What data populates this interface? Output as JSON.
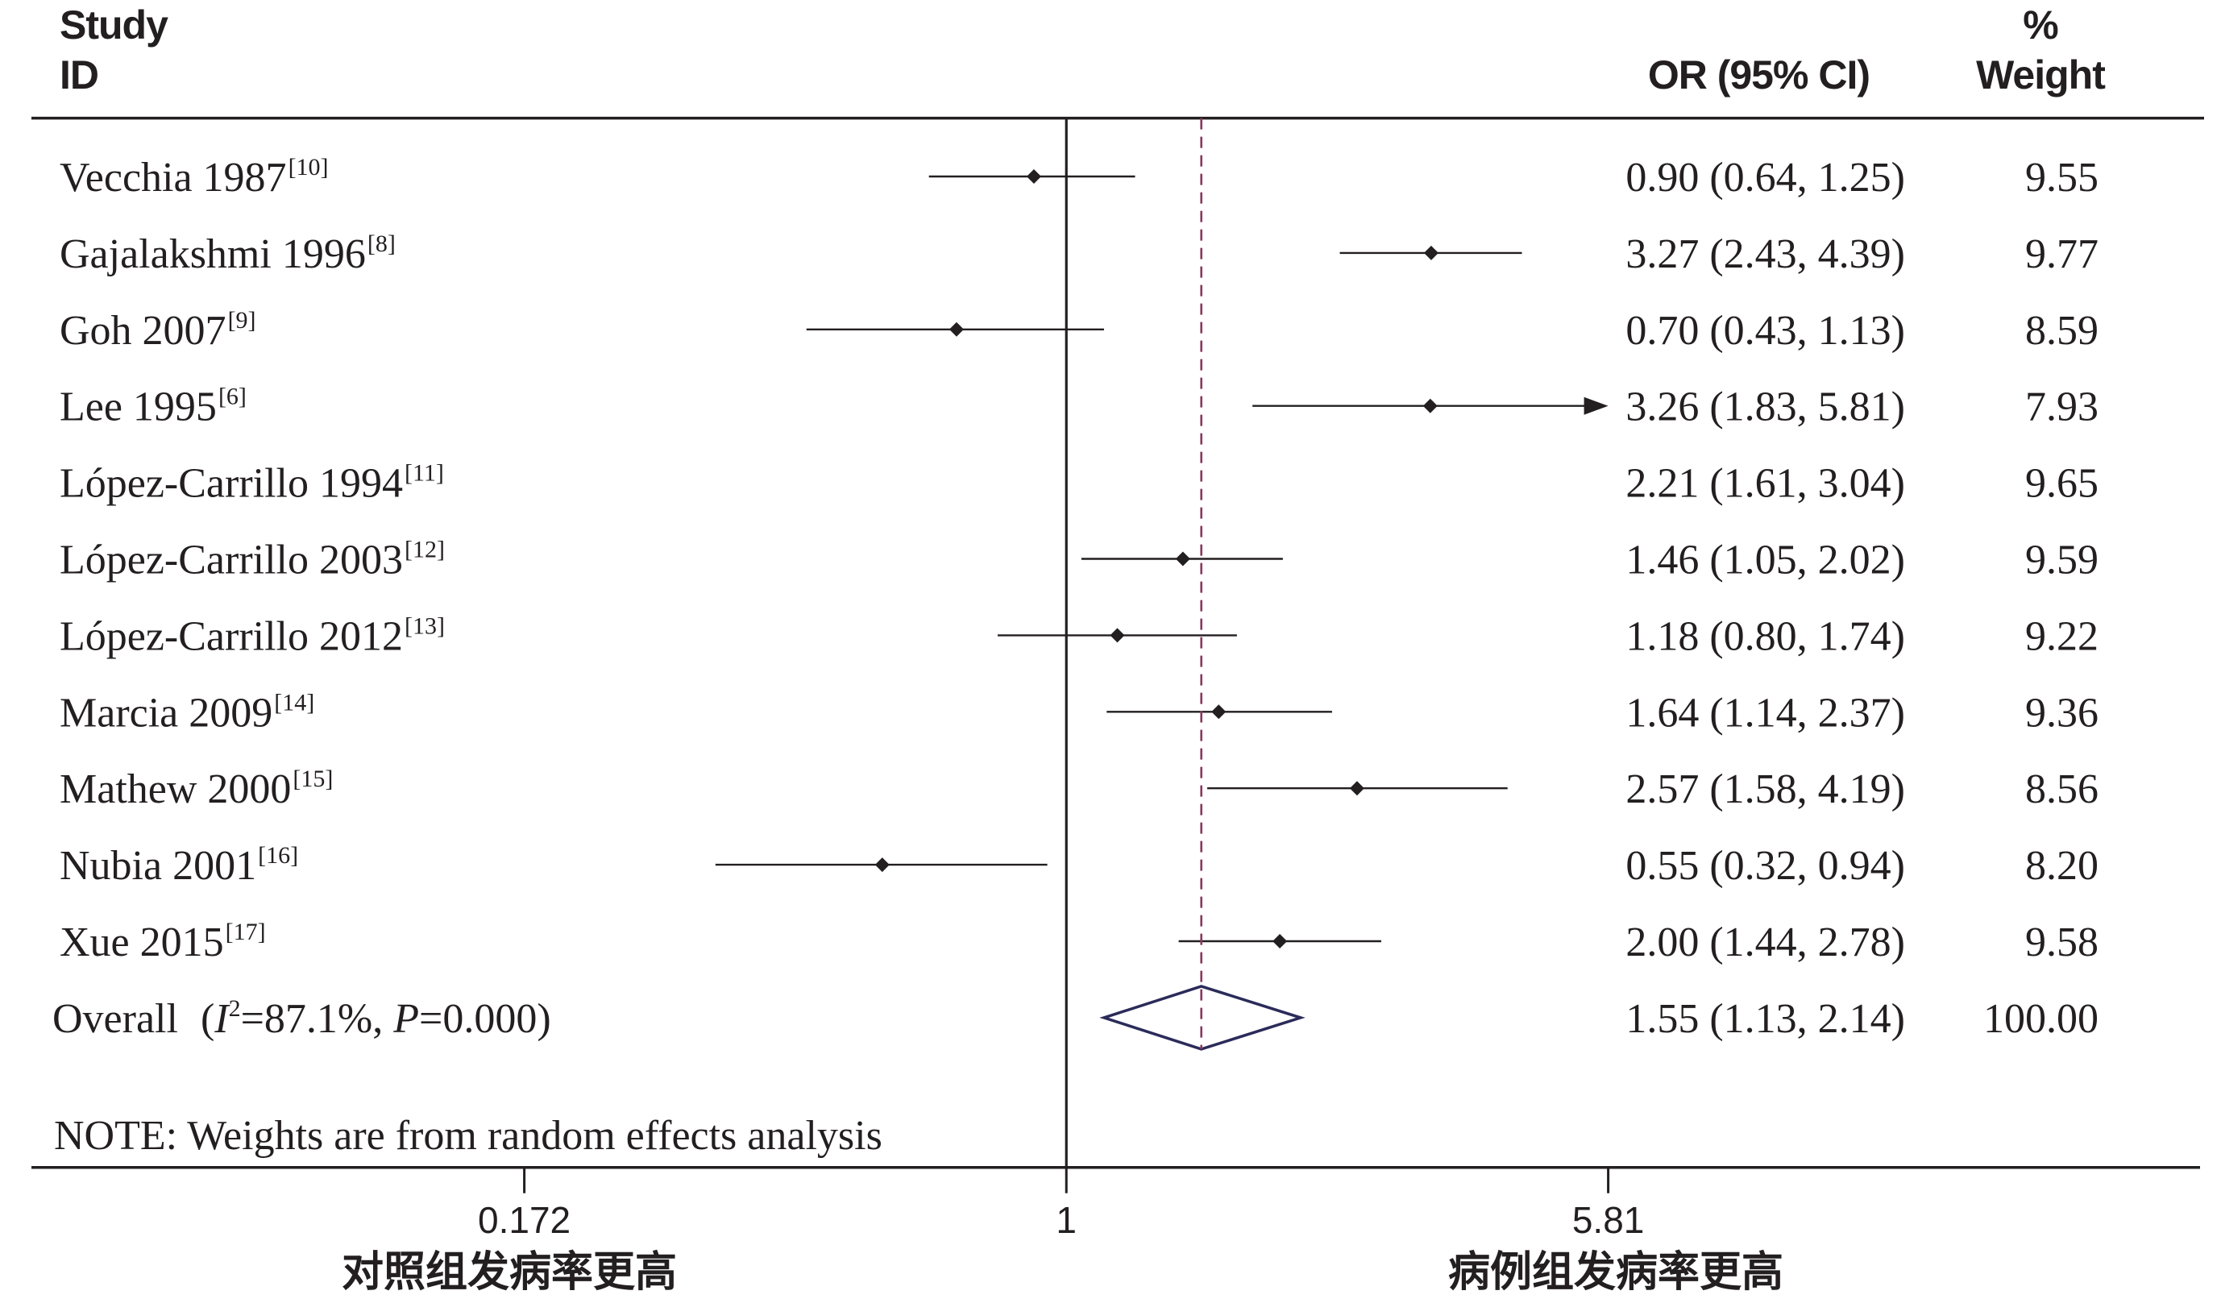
{
  "colors": {
    "text": "#231f20",
    "axis": "#231f20",
    "ci_line": "#231f20",
    "overall_line": "#8b3a5e",
    "overall_diamond": "#2b2b5a"
  },
  "chart_data": {
    "type": "scatter",
    "x_scale": "log",
    "xlim": [
      0.172,
      5.81
    ],
    "reference_value": 1,
    "columns": {
      "study": [
        "Study",
        "ID"
      ],
      "estimate": "OR (95% CI)",
      "weight": [
        "%",
        "Weight"
      ]
    },
    "x_ticks": [
      {
        "value": 0.172,
        "label": "0.172"
      },
      {
        "value": 1,
        "label": "1"
      },
      {
        "value": 5.81,
        "label": "5.81"
      }
    ],
    "x_annotations": {
      "left": "对照组发病率更高",
      "right": "病例组发病率更高"
    },
    "studies": [
      {
        "name": "Vecchia 1987",
        "ref": "[10]",
        "or": 0.9,
        "ci": [
          0.64,
          1.25
        ],
        "weight": 9.55
      },
      {
        "name": "Gajalakshmi 1996",
        "ref": "[8]",
        "or": 3.27,
        "ci": [
          2.43,
          4.39
        ],
        "weight": 9.77
      },
      {
        "name": "Goh 2007",
        "ref": "[9]",
        "or": 0.7,
        "ci": [
          0.43,
          1.13
        ],
        "weight": 8.59
      },
      {
        "name": "Lee 1995",
        "ref": "[6]",
        "or": 3.26,
        "ci": [
          1.83,
          5.81
        ],
        "weight": 7.93
      },
      {
        "name": "López-Carrillo 1994",
        "ref": "[11]",
        "or": 2.21,
        "ci": [
          1.61,
          3.04
        ],
        "weight": 9.65,
        "marker_visible": false
      },
      {
        "name": "López-Carrillo 2003",
        "ref": "[12]",
        "or": 1.46,
        "ci": [
          1.05,
          2.02
        ],
        "weight": 9.59
      },
      {
        "name": "López-Carrillo 2012",
        "ref": "[13]",
        "or": 1.18,
        "ci": [
          0.8,
          1.74
        ],
        "weight": 9.22
      },
      {
        "name": "Marcia 2009",
        "ref": "[14]",
        "or": 1.64,
        "ci": [
          1.14,
          2.37
        ],
        "weight": 9.36
      },
      {
        "name": "Mathew 2000",
        "ref": "[15]",
        "or": 2.57,
        "ci": [
          1.58,
          4.19
        ],
        "weight": 8.56
      },
      {
        "name": "Nubia 2001",
        "ref": "[16]",
        "or": 0.55,
        "ci": [
          0.32,
          0.94
        ],
        "weight": 8.2
      },
      {
        "name": "Xue 2015",
        "ref": "[17]",
        "or": 2.0,
        "ci": [
          1.44,
          2.78
        ],
        "weight": 9.58
      }
    ],
    "overall": {
      "label": "Overall",
      "heterogeneity": {
        "open": "(",
        "i_symbol": "I",
        "i_exponent": "2",
        "i_text": "=87.1%,",
        "p_symbol": "P",
        "p_text": "=0.000)"
      },
      "or": 1.55,
      "ci": [
        1.13,
        2.14
      ],
      "weight": 100.0
    },
    "note": "NOTE: Weights are from random effects analysis"
  }
}
